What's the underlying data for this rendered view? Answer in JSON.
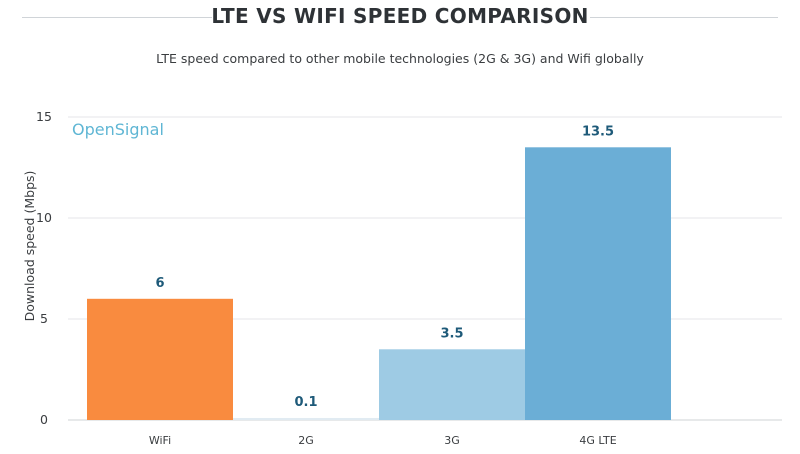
{
  "header": {
    "title": "LTE VS WIFI SPEED COMPARISON",
    "subtitle": "LTE speed compared to other mobile technologies (2G & 3G) and Wifi globally"
  },
  "watermark": "OpenSignal",
  "chart_data": {
    "type": "bar",
    "title": "LTE VS WIFI SPEED COMPARISON",
    "subtitle": "LTE speed compared to other mobile technologies (2G & 3G) and Wifi globally",
    "xlabel": "",
    "ylabel": "Download speed (Mbps)",
    "ylim": [
      0,
      15
    ],
    "yticks": [
      0,
      5,
      10,
      15
    ],
    "grid": true,
    "categories": [
      "WiFi",
      "2G",
      "3G",
      "4G LTE"
    ],
    "values": [
      6,
      0.1,
      3.5,
      13.5
    ],
    "data_labels": [
      "6",
      "0.1",
      "3.5",
      "13.5"
    ],
    "colors": [
      "#f98b3f",
      "#e1ebf2",
      "#9ecbe4",
      "#6baed6"
    ],
    "label_color": "#1e5a79"
  }
}
